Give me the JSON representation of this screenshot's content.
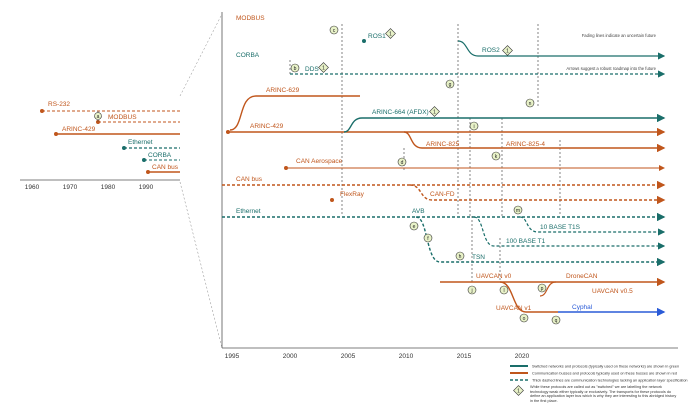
{
  "colors": {
    "orange": "#c0561c",
    "teal": "#1a6e6a",
    "blue": "#2a5bd7",
    "gray": "#555555",
    "marker_fill": "#e8f2c8"
  },
  "left_panel": {
    "labels": {
      "rs232": "RS-232",
      "modbus": "MODBUS",
      "arinc429": "ARINC-429",
      "ethernet": "Ethernet",
      "corba": "CORBA",
      "canbus": "CAN bus"
    },
    "markers": {
      "a": "a",
      "b": "b"
    },
    "axis_years": [
      "1960",
      "1970",
      "1980",
      "1990"
    ]
  },
  "main": {
    "labels": {
      "modbus": "MODBUS",
      "corba": "CORBA",
      "arinc629": "ARINC-629",
      "arinc429": "ARINC-429",
      "arinc664": "ARINC-664 (AFDX)",
      "arinc825": "ARINC-825",
      "arinc825_4": "ARINC-825-4",
      "can_aerospace": "CAN Aerospace",
      "canbus": "CAN bus",
      "flexray": "FlexRay",
      "canfd": "CAN-FD",
      "ethernet": "Ethernet",
      "avb": "AVB",
      "tsn": "TSN",
      "t1s": "10 BASE T1S",
      "t1": "100 BASE T1",
      "ros1": "ROS1",
      "ros2": "ROS2",
      "dds": "DDS",
      "uavcan_v0": "UAVCAN v0",
      "dronecan": "DroneCAN",
      "uavcan_v05": "UAVCAN v0.5",
      "uavcan_v1": "UAVCAN v1",
      "cyphal": "Cyphal"
    },
    "notes": {
      "fading": "Fading lines indicate an uncertain future",
      "arrows": "Arrows suggest a robust roadmap into the future"
    },
    "markers": {
      "c": "c",
      "d": "d",
      "e": "e",
      "f": "f",
      "g": "g",
      "h": "h",
      "i": "i",
      "j": "j",
      "k": "k",
      "l": "l",
      "m": "m",
      "n": "n",
      "o": "o",
      "p": "p",
      "q": "q"
    },
    "diamond_number": "1",
    "axis_years": [
      "1995",
      "2000",
      "2005",
      "2010",
      "2015",
      "2020"
    ]
  },
  "legend": {
    "teal_line": "Switched networks and protocols (typically used on these networks) are shown in green",
    "orange_line": "Communication busses and protocols typically used on these busses are shown in red",
    "dashed_line": "Thick dashed lines are communication technologies lacking an application layer specification",
    "diamond_number": "1",
    "diamond_text": "While these protocols are called out as \"switched\" we are labelling the network technology weak either typically or exclusively. The transports for these protocols do define an application layer bus which is why they are interesting to this abridged history in the first place."
  }
}
